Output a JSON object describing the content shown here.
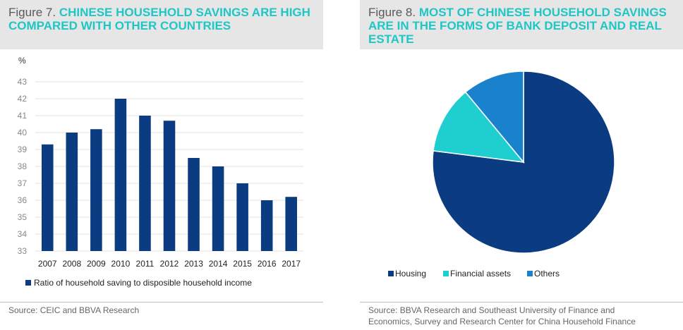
{
  "figure7": {
    "number": "Figure 7.",
    "title": "CHINESE HOUSEHOLD SAVINGS ARE HIGH COMPARED WITH OTHER COUNTRIES",
    "source": "Source: CEIC and BBVA Research"
  },
  "figure8": {
    "number": "Figure 8.",
    "title": "MOST OF CHINESE HOUSEHOLD SAVINGS ARE IN THE FORMS OF BANK DEPOSIT AND REAL ESTATE",
    "source_line1": "Source: BBVA Research and Southeast University of Finance and",
    "source_line2": "Economics, Survey  and Research Center for China Household Finance"
  },
  "chart_data": [
    {
      "type": "bar",
      "ylabel": "%",
      "ylim": [
        33,
        43
      ],
      "yticks": [
        33,
        34,
        35,
        36,
        37,
        38,
        39,
        40,
        41,
        42,
        43
      ],
      "categories": [
        "2007",
        "2008",
        "2009",
        "2010",
        "2011",
        "2012",
        "2013",
        "2014",
        "2015",
        "2016",
        "2017"
      ],
      "series": [
        {
          "name": "Ratio of household saving to disposible household income",
          "values": [
            39.3,
            40.0,
            40.2,
            42.0,
            41.0,
            40.7,
            38.5,
            38.0,
            37.0,
            36.0,
            36.2
          ],
          "color": "#0b3c82"
        }
      ],
      "grid": true,
      "legend_position": "bottom-left"
    },
    {
      "type": "pie",
      "categories": [
        "Housing",
        "Financial assets",
        "Others"
      ],
      "values": [
        77,
        12,
        11
      ],
      "colors": [
        "#0b3c82",
        "#1fcfcf",
        "#1a82cc"
      ],
      "legend_position": "bottom"
    }
  ]
}
